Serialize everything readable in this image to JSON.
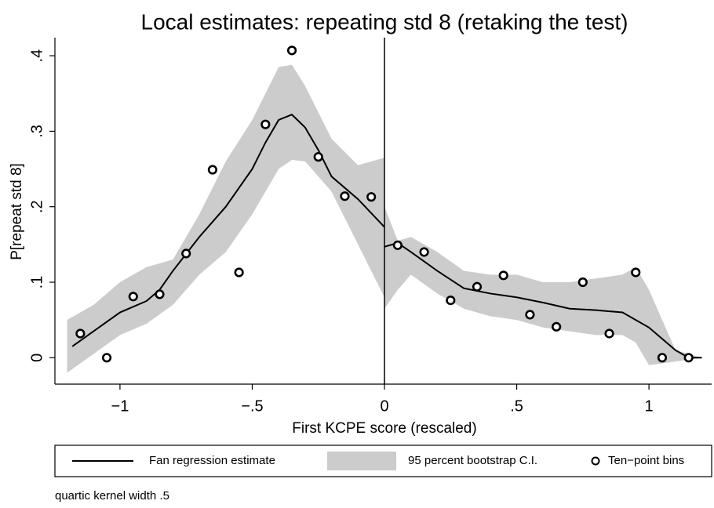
{
  "chart_data": {
    "type": "line",
    "title": "Local estimates: repeating std 8 (retaking the test)",
    "x_label": "First KCPE score (rescaled)",
    "y_label": "P[repeat std 8]",
    "note": "quartic kernel width .5",
    "xlim": [
      -1.246,
      1.237
    ],
    "ylim": [
      -0.035,
      0.424
    ],
    "xticks": [
      {
        "value": -1,
        "label": "−1"
      },
      {
        "value": -0.5,
        "label": "−.5"
      },
      0,
      {
        "value": 0.5,
        "label": ".5"
      },
      1
    ],
    "yticks": [
      0,
      {
        "value": 0.1,
        "label": ".1"
      },
      {
        "value": 0.2,
        "label": ".2"
      },
      {
        "value": 0.3,
        "label": ".3"
      },
      {
        "value": 0.4,
        "label": ".4"
      }
    ],
    "xline": 0,
    "grid": false,
    "line": {
      "name": "Fan regression estimate",
      "color": "#000000",
      "x": [
        -1.18,
        -1.1,
        -1.0,
        -0.9,
        -0.85,
        -0.8,
        -0.7,
        -0.6,
        -0.5,
        -0.45,
        -0.4,
        -0.35,
        -0.3,
        -0.25,
        -0.2,
        -0.1,
        0,
        0,
        0,
        0.05,
        0.1,
        0.2,
        0.3,
        0.4,
        0.5,
        0.6,
        0.7,
        0.8,
        0.9,
        1.0,
        1.1,
        1.15,
        1.2
      ],
      "values": [
        0.015,
        0.035,
        0.06,
        0.075,
        0.09,
        0.115,
        0.16,
        0.2,
        0.25,
        0.285,
        0.315,
        0.322,
        0.305,
        0.275,
        0.24,
        0.21,
        0.173,
        null,
        0.147,
        0.152,
        0.14,
        0.115,
        0.092,
        0.085,
        0.08,
        0.073,
        0.065,
        0.063,
        0.06,
        0.04,
        0.01,
        0,
        0
      ]
    },
    "band": {
      "name": "95 percent bootstrap C.I.",
      "color": "#cccccc",
      "x": [
        -1.2,
        -1.1,
        -1.0,
        -0.9,
        -0.8,
        -0.7,
        -0.6,
        -0.5,
        -0.4,
        -0.35,
        -0.3,
        -0.2,
        -0.1,
        0,
        0,
        0,
        0.05,
        0.1,
        0.2,
        0.3,
        0.4,
        0.5,
        0.6,
        0.7,
        0.8,
        0.9,
        0.95,
        1.0,
        1.1,
        1.2
      ],
      "lower": [
        -0.02,
        0.005,
        0.03,
        0.045,
        0.07,
        0.11,
        0.14,
        0.19,
        0.25,
        0.262,
        0.26,
        0.22,
        0.15,
        0.08,
        null,
        0.065,
        0.09,
        0.11,
        0.085,
        0.065,
        0.055,
        0.05,
        0.04,
        0.035,
        0.03,
        0.03,
        0.02,
        -0.01,
        -0.005,
        0
      ],
      "upper": [
        0.05,
        0.07,
        0.1,
        0.12,
        0.13,
        0.19,
        0.26,
        0.315,
        0.385,
        0.388,
        0.36,
        0.29,
        0.255,
        0.265,
        null,
        0.2,
        0.155,
        0.16,
        0.14,
        0.115,
        0.11,
        0.11,
        0.1,
        0.1,
        0.105,
        0.11,
        0.12,
        0.09,
        0.01,
        0
      ]
    },
    "points": {
      "name": "Ten−point bins",
      "color": "#000000",
      "x": [
        -1.15,
        -1.05,
        -0.95,
        -0.85,
        -0.75,
        -0.65,
        -0.55,
        -0.45,
        -0.35,
        -0.25,
        -0.15,
        -0.05,
        0.05,
        0.15,
        0.25,
        0.35,
        0.45,
        0.55,
        0.65,
        0.75,
        0.85,
        0.95,
        1.05,
        1.15
      ],
      "values": [
        0.032,
        0,
        0.081,
        0.084,
        0.138,
        0.249,
        0.113,
        0.309,
        0.407,
        0.266,
        0.214,
        0.213,
        0.149,
        0.14,
        0.076,
        0.094,
        0.109,
        0.057,
        0.041,
        0.1,
        0.032,
        0.113,
        0,
        0
      ]
    }
  }
}
